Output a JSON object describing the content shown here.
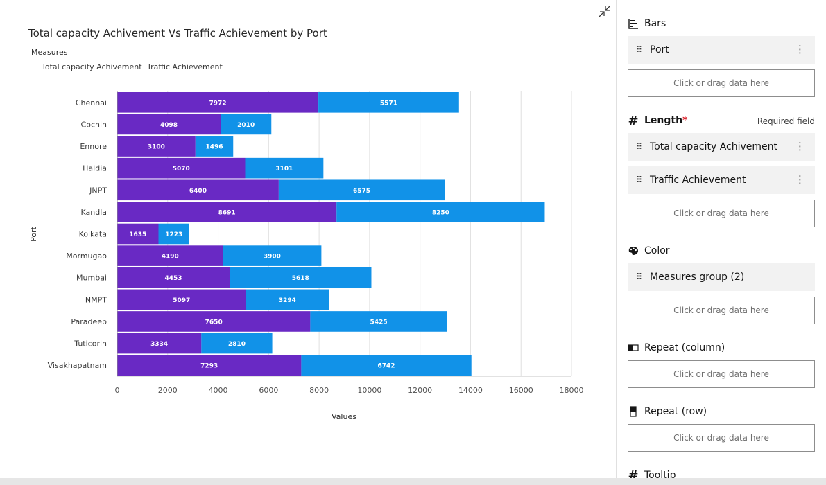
{
  "chart_title": "Total capacity Achivement Vs Traffic Achievement by Port",
  "legend": {
    "heading": "Measures",
    "items": [
      "Total capacity Achivement",
      "Traffic Achievement"
    ]
  },
  "colors": {
    "series1": "#6929c4",
    "series2": "#1192e8"
  },
  "chart_data": {
    "type": "bar",
    "orientation": "horizontal",
    "stacked": true,
    "title": "Total capacity Achivement Vs Traffic Achievement by Port",
    "xlabel": "Values",
    "ylabel": "Port",
    "xlim": [
      0,
      18000
    ],
    "xticks": [
      0,
      2000,
      4000,
      6000,
      8000,
      10000,
      12000,
      14000,
      16000,
      18000
    ],
    "grid": true,
    "legend_position": "top-left",
    "categories": [
      "Chennai",
      "Cochin",
      "Ennore",
      "Haldia",
      "JNPT",
      "Kandla",
      "Kolkata",
      "Mormugao",
      "Mumbai",
      "NMPT",
      "Paradeep",
      "Tuticorin",
      "Visakhapatnam"
    ],
    "series": [
      {
        "name": "Total capacity Achivement",
        "values": [
          7972,
          4098,
          3100,
          5070,
          6400,
          8691,
          1635,
          4190,
          4453,
          5097,
          7650,
          3334,
          7293
        ]
      },
      {
        "name": "Traffic Achievement",
        "values": [
          5571,
          2010,
          1496,
          3101,
          6575,
          8250,
          1223,
          3900,
          5618,
          3294,
          5425,
          2810,
          6742
        ]
      }
    ]
  },
  "side_panel": {
    "bars": {
      "label": "Bars",
      "field": "Port",
      "dropzone": "Click or drag data here"
    },
    "length": {
      "label": "Length",
      "required_star": "*",
      "required_note": "Required field",
      "fields": [
        "Total capacity Achivement",
        "Traffic Achievement"
      ],
      "dropzone": "Click or drag data here"
    },
    "color": {
      "label": "Color",
      "field": "Measures group (2)",
      "dropzone": "Click or drag data here"
    },
    "repeat_column": {
      "label": "Repeat (column)",
      "dropzone": "Click or drag data here"
    },
    "repeat_row": {
      "label": "Repeat (row)",
      "dropzone": "Click or drag data here"
    },
    "tooltip": {
      "label": "Tooltip"
    }
  },
  "icons": {
    "collapse": "collapse-icon",
    "bars": "bar-chart-icon",
    "length": "hash-icon",
    "color": "palette-icon",
    "repeat_column": "repeat-column-icon",
    "repeat_row": "repeat-row-icon",
    "tooltip": "hash-icon",
    "drag": "drag-handle-icon",
    "menu": "overflow-menu-icon"
  }
}
